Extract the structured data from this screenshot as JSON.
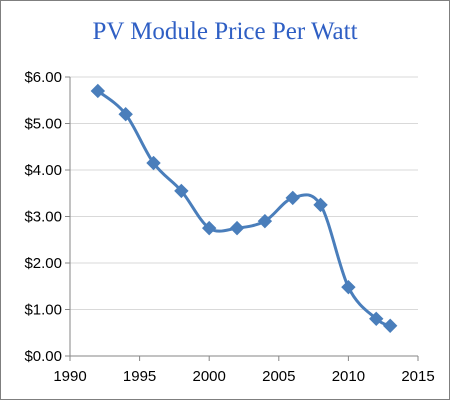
{
  "chart_data": {
    "type": "line",
    "title": "PV Module Price Per Watt",
    "xlabel": "",
    "ylabel": "",
    "xlim": [
      1990,
      2015
    ],
    "ylim": [
      0,
      6
    ],
    "x_ticks": [
      1990,
      1995,
      2000,
      2005,
      2010,
      2015
    ],
    "y_ticks": [
      0,
      1,
      2,
      3,
      4,
      5,
      6
    ],
    "y_tick_labels": [
      "$0.00",
      "$1.00",
      "$2.00",
      "$3.00",
      "$4.00",
      "$5.00",
      "$6.00"
    ],
    "grid": true,
    "legend": "none",
    "colors": {
      "line": "#4a7ebb",
      "marker": "#4a7ebb",
      "title": "#2f5fc4",
      "grid": "#d9d9d9",
      "axis": "#868686"
    },
    "series": [
      {
        "x": [
          1992,
          1994,
          1996,
          1998,
          2000,
          2002,
          2004,
          2006,
          2008,
          2010,
          2012,
          2013
        ],
        "y": [
          5.7,
          5.2,
          4.15,
          3.55,
          2.75,
          2.75,
          2.9,
          3.4,
          3.25,
          1.48,
          0.8,
          0.65
        ]
      }
    ]
  }
}
